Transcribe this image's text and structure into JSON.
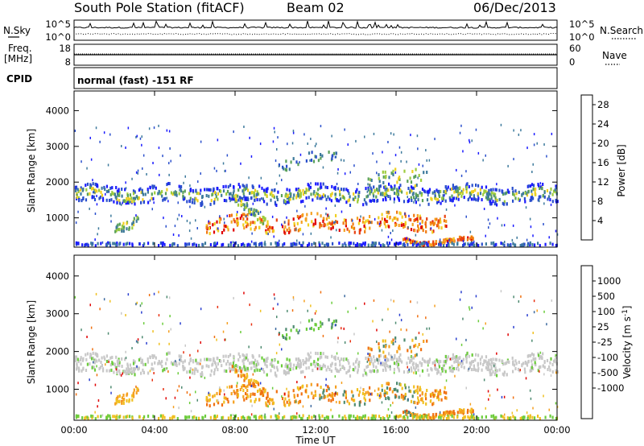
{
  "header": {
    "station": "South Pole Station (fitACF)",
    "beam": "Beam 02",
    "date": "06/Dec/2013"
  },
  "noise_panel": {
    "left_label": "N.Sky",
    "right_label": "N.Search",
    "left_ticks": [
      "10^5",
      "10^0"
    ],
    "right_ticks": [
      "10^5",
      "10^0"
    ]
  },
  "freq_panel": {
    "left_label": "Freq. [MHz]",
    "right_label": "Nave",
    "left_ticks": [
      "18",
      "8"
    ],
    "right_ticks": [
      "60",
      "0"
    ]
  },
  "cpid": {
    "label": "CPID",
    "value": "normal (fast) -151 RF"
  },
  "chart_data": [
    {
      "type": "heatmap",
      "title": "",
      "quantity": "Power",
      "ylabel": "Slant Range [km]",
      "xlabel": "",
      "x_range": [
        "00:00",
        "24:00"
      ],
      "y_range": [
        180,
        4550
      ],
      "y_ticks": [
        1000,
        2000,
        3000,
        4000
      ],
      "colorbar_label": "Power [dB]",
      "colorbar_ticks": [
        4,
        8,
        12,
        16,
        20,
        24,
        28
      ],
      "colorbar_range": [
        0,
        30
      ],
      "colors": [
        "#1a1aff",
        "#2a4fcc",
        "#3d7a9c",
        "#5aa05a",
        "#9ccc3c",
        "#f0d020",
        "#f5a020",
        "#f07a10",
        "#e84010",
        "#e00000"
      ]
    },
    {
      "type": "heatmap",
      "title": "",
      "quantity": "Velocity",
      "ylabel": "Slant Range [km]",
      "xlabel": "Time UT",
      "x_range": [
        "00:00",
        "24:00"
      ],
      "y_range": [
        180,
        4550
      ],
      "y_ticks": [
        1000,
        2000,
        3000,
        4000
      ],
      "x_ticks": [
        "00:00",
        "04:00",
        "08:00",
        "12:00",
        "16:00",
        "20:00",
        "00:00"
      ],
      "colorbar_label": "Velocity [m s^-1]",
      "colorbar_ticks": [
        "1000",
        "500",
        "100",
        "25",
        "-25",
        "-100",
        "-500",
        "-1000"
      ],
      "colors": [
        "#2a3fd0",
        "#3d6aa0",
        "#4d8a70",
        "#6ccc3c",
        "#c8c8c8",
        "#f0c020",
        "#f5a020",
        "#f07010",
        "#e83010",
        "#e00000"
      ]
    }
  ]
}
